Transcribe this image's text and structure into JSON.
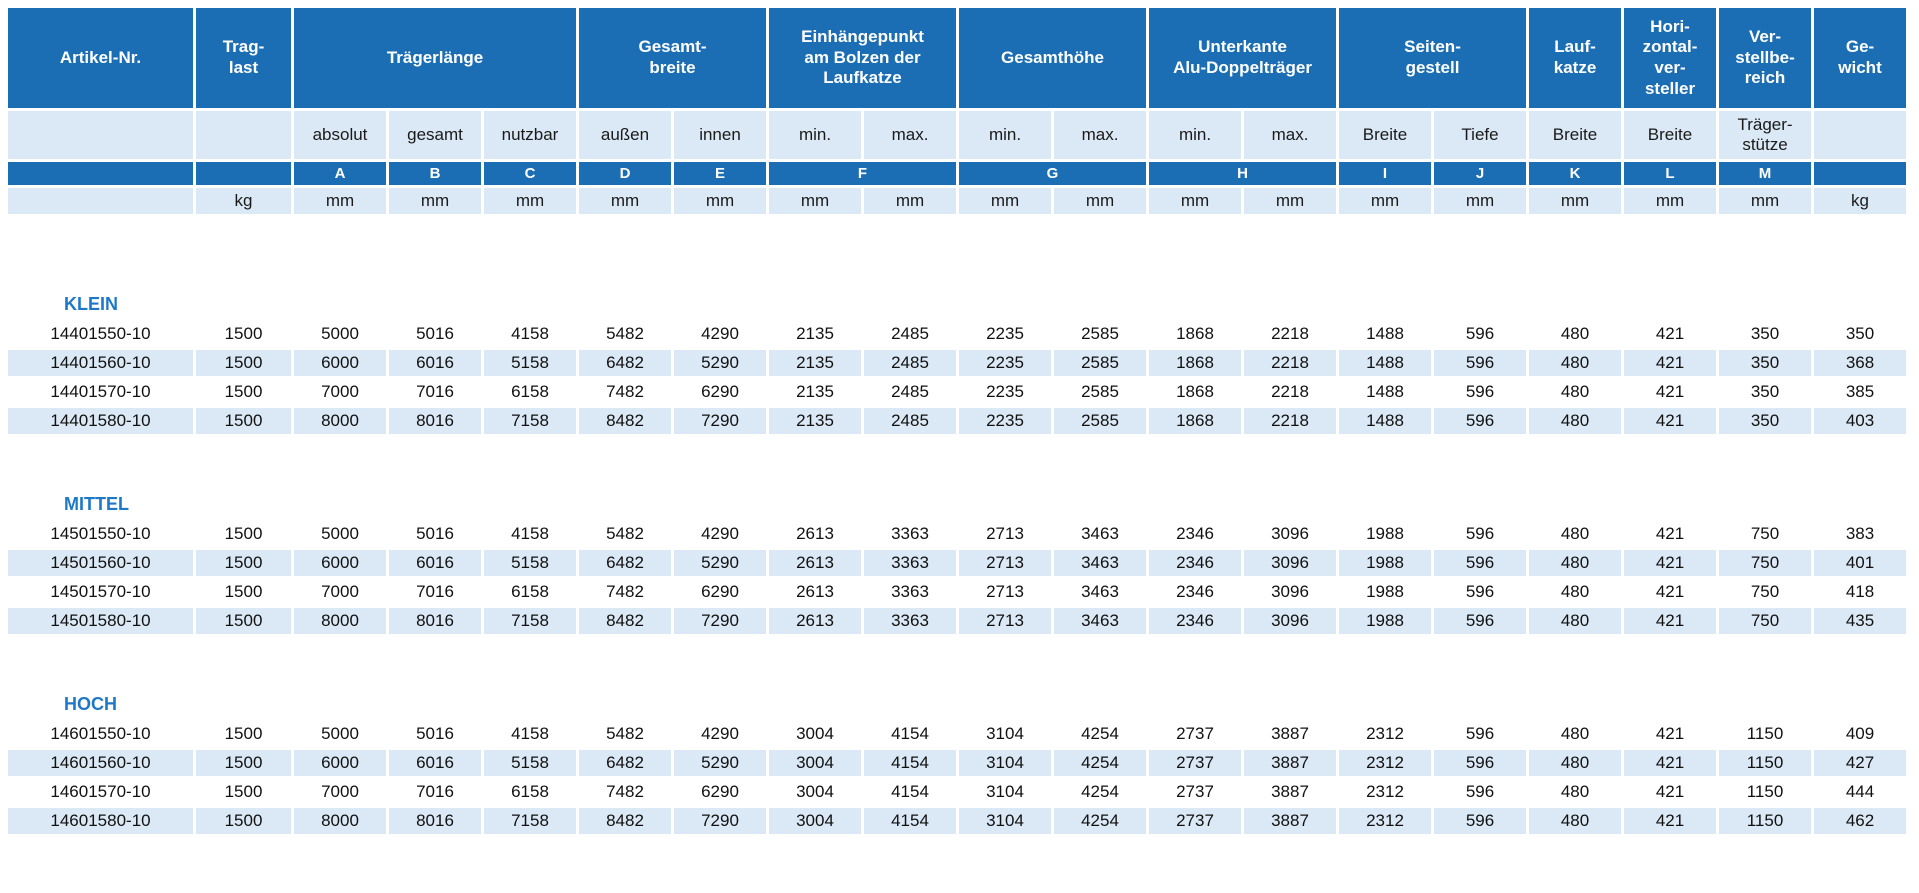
{
  "colors": {
    "header_blue": "#1c6eb4",
    "light_blue": "#dbe8f5",
    "group_label_blue": "#1e78c8",
    "body_text": "#111111"
  },
  "table": {
    "header_groups": [
      {
        "label": "Artikel-Nr."
      },
      {
        "label": "Trag-\nlast"
      },
      {
        "label": "Trägerlänge"
      },
      {
        "label": "Gesamt-\nbreite"
      },
      {
        "label": "Einhängepunkt\nam Bolzen der\nLaufkatze"
      },
      {
        "label": "Gesamthöhe"
      },
      {
        "label": "Unterkante\nAlu-Doppelträger"
      },
      {
        "label": "Seiten-\ngestell"
      },
      {
        "label": "Lauf-\nkatze"
      },
      {
        "label": "Hori-\nzontal-\nver-\nsteller"
      },
      {
        "label": "Ver-\nstellbe-\nreich"
      },
      {
        "label": "Ge-\nwicht"
      }
    ],
    "subheaders": [
      "",
      "",
      "absolut",
      "gesamt",
      "nutzbar",
      "außen",
      "innen",
      "min.",
      "max.",
      "min.",
      "max.",
      "min.",
      "max.",
      "Breite",
      "Tiefe",
      "Breite",
      "Breite",
      "Träger-\nstütze",
      ""
    ],
    "letters": [
      "",
      "",
      "A",
      "B",
      "C",
      "D",
      "E",
      "F",
      "G",
      "H",
      "I",
      "J",
      "K",
      "L",
      "M",
      ""
    ],
    "units": [
      "",
      "kg",
      "mm",
      "mm",
      "mm",
      "mm",
      "mm",
      "mm",
      "mm",
      "mm",
      "mm",
      "mm",
      "mm",
      "mm",
      "mm",
      "mm",
      "mm",
      "mm",
      "kg"
    ],
    "groups": [
      {
        "name": "KLEIN",
        "rows": [
          [
            "14401550-10",
            "1500",
            "5000",
            "5016",
            "4158",
            "5482",
            "4290",
            "2135",
            "2485",
            "2235",
            "2585",
            "1868",
            "2218",
            "1488",
            "596",
            "480",
            "421",
            "350",
            "350"
          ],
          [
            "14401560-10",
            "1500",
            "6000",
            "6016",
            "5158",
            "6482",
            "5290",
            "2135",
            "2485",
            "2235",
            "2585",
            "1868",
            "2218",
            "1488",
            "596",
            "480",
            "421",
            "350",
            "368"
          ],
          [
            "14401570-10",
            "1500",
            "7000",
            "7016",
            "6158",
            "7482",
            "6290",
            "2135",
            "2485",
            "2235",
            "2585",
            "1868",
            "2218",
            "1488",
            "596",
            "480",
            "421",
            "350",
            "385"
          ],
          [
            "14401580-10",
            "1500",
            "8000",
            "8016",
            "7158",
            "8482",
            "7290",
            "2135",
            "2485",
            "2235",
            "2585",
            "1868",
            "2218",
            "1488",
            "596",
            "480",
            "421",
            "350",
            "403"
          ]
        ]
      },
      {
        "name": "MITTEL",
        "rows": [
          [
            "14501550-10",
            "1500",
            "5000",
            "5016",
            "4158",
            "5482",
            "4290",
            "2613",
            "3363",
            "2713",
            "3463",
            "2346",
            "3096",
            "1988",
            "596",
            "480",
            "421",
            "750",
            "383"
          ],
          [
            "14501560-10",
            "1500",
            "6000",
            "6016",
            "5158",
            "6482",
            "5290",
            "2613",
            "3363",
            "2713",
            "3463",
            "2346",
            "3096",
            "1988",
            "596",
            "480",
            "421",
            "750",
            "401"
          ],
          [
            "14501570-10",
            "1500",
            "7000",
            "7016",
            "6158",
            "7482",
            "6290",
            "2613",
            "3363",
            "2713",
            "3463",
            "2346",
            "3096",
            "1988",
            "596",
            "480",
            "421",
            "750",
            "418"
          ],
          [
            "14501580-10",
            "1500",
            "8000",
            "8016",
            "7158",
            "8482",
            "7290",
            "2613",
            "3363",
            "2713",
            "3463",
            "2346",
            "3096",
            "1988",
            "596",
            "480",
            "421",
            "750",
            "435"
          ]
        ]
      },
      {
        "name": "HOCH",
        "rows": [
          [
            "14601550-10",
            "1500",
            "5000",
            "5016",
            "4158",
            "5482",
            "4290",
            "3004",
            "4154",
            "3104",
            "4254",
            "2737",
            "3887",
            "2312",
            "596",
            "480",
            "421",
            "1150",
            "409"
          ],
          [
            "14601560-10",
            "1500",
            "6000",
            "6016",
            "5158",
            "6482",
            "5290",
            "3004",
            "4154",
            "3104",
            "4254",
            "2737",
            "3887",
            "2312",
            "596",
            "480",
            "421",
            "1150",
            "427"
          ],
          [
            "14601570-10",
            "1500",
            "7000",
            "7016",
            "6158",
            "7482",
            "6290",
            "3004",
            "4154",
            "3104",
            "4254",
            "2737",
            "3887",
            "2312",
            "596",
            "480",
            "421",
            "1150",
            "444"
          ],
          [
            "14601580-10",
            "1500",
            "8000",
            "8016",
            "7158",
            "8482",
            "7290",
            "3004",
            "4154",
            "3104",
            "4254",
            "2737",
            "3887",
            "2312",
            "596",
            "480",
            "421",
            "1150",
            "462"
          ]
        ]
      }
    ]
  }
}
